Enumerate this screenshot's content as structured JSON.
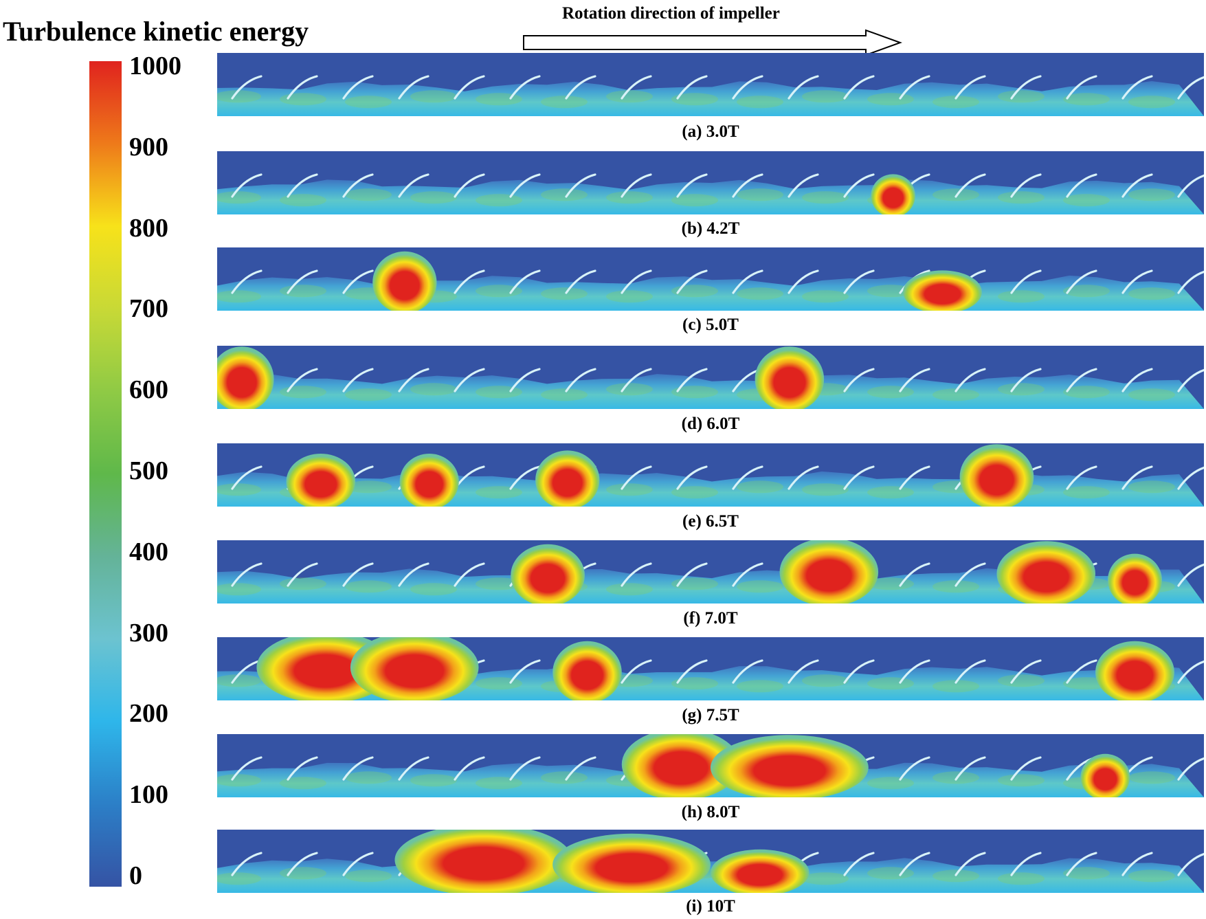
{
  "legend": {
    "title": "Turbulence kinetic energy",
    "ticks": [
      "1000",
      "900",
      "800",
      "700",
      "600",
      "500",
      "400",
      "300",
      "200",
      "100",
      "0"
    ],
    "stops": [
      "#e0231e",
      "#ee7a1a",
      "#f7e21a",
      "#c8d936",
      "#8fca45",
      "#5fb84a",
      "#64b398",
      "#6cc3d0",
      "#2eb6ea",
      "#2c7fc7",
      "#3553a4"
    ]
  },
  "arrow": {
    "label": "Rotation direction of impeller"
  },
  "colors": {
    "background": "#3553a4",
    "flow": "#5ac8d8",
    "blade": "#d8f2f8"
  },
  "panels": [
    {
      "caption": "(a) 3.0T",
      "blobs": []
    },
    {
      "caption": "(b) 4.2T",
      "blobs": [
        {
          "x": 0.685,
          "w": 0.045,
          "h": 0.55
        }
      ]
    },
    {
      "caption": "(c) 5.0T",
      "blobs": [
        {
          "x": 0.19,
          "w": 0.065,
          "h": 0.85
        },
        {
          "x": 0.735,
          "w": 0.08,
          "h": 0.55
        }
      ]
    },
    {
      "caption": "(d) 6.0T",
      "blobs": [
        {
          "x": 0.025,
          "w": 0.065,
          "h": 0.9
        },
        {
          "x": 0.58,
          "w": 0.07,
          "h": 0.9
        }
      ]
    },
    {
      "caption": "(e) 6.5T",
      "blobs": [
        {
          "x": 0.105,
          "w": 0.07,
          "h": 0.75
        },
        {
          "x": 0.215,
          "w": 0.06,
          "h": 0.75
        },
        {
          "x": 0.355,
          "w": 0.065,
          "h": 0.8
        },
        {
          "x": 0.79,
          "w": 0.075,
          "h": 0.9
        }
      ]
    },
    {
      "caption": "(f) 7.0T",
      "blobs": [
        {
          "x": 0.335,
          "w": 0.075,
          "h": 0.85
        },
        {
          "x": 0.62,
          "w": 0.1,
          "h": 0.95
        },
        {
          "x": 0.84,
          "w": 0.1,
          "h": 0.9
        },
        {
          "x": 0.93,
          "w": 0.055,
          "h": 0.7
        }
      ]
    },
    {
      "caption": "(g) 7.5T",
      "blobs": [
        {
          "x": 0.11,
          "w": 0.14,
          "h": 1.0
        },
        {
          "x": 0.2,
          "w": 0.13,
          "h": 1.0
        },
        {
          "x": 0.375,
          "w": 0.07,
          "h": 0.85
        },
        {
          "x": 0.93,
          "w": 0.08,
          "h": 0.85
        }
      ]
    },
    {
      "caption": "(h) 8.0T",
      "blobs": [
        {
          "x": 0.47,
          "w": 0.12,
          "h": 1.0
        },
        {
          "x": 0.58,
          "w": 0.16,
          "h": 0.9
        },
        {
          "x": 0.9,
          "w": 0.05,
          "h": 0.6
        }
      ]
    },
    {
      "caption": "(i) 10T",
      "blobs": [
        {
          "x": 0.27,
          "w": 0.18,
          "h": 1.0
        },
        {
          "x": 0.42,
          "w": 0.16,
          "h": 0.85
        },
        {
          "x": 0.55,
          "w": 0.1,
          "h": 0.6
        }
      ]
    }
  ]
}
